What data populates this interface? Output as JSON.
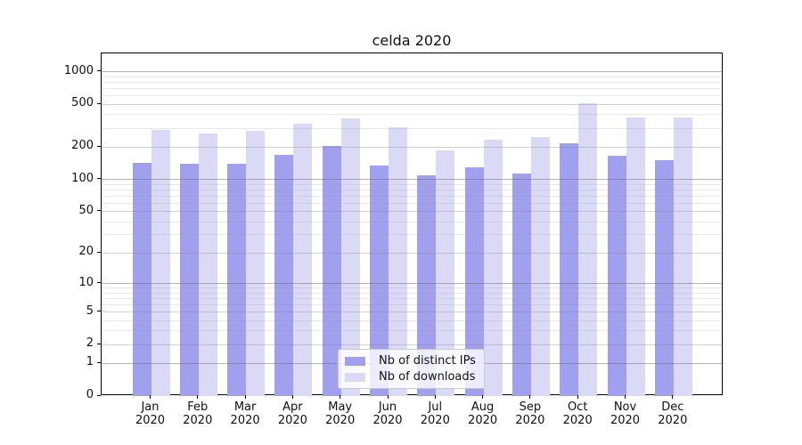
{
  "chart_data": {
    "type": "bar",
    "title": "celda 2020",
    "categories": [
      "Jan 2020",
      "Feb 2020",
      "Mar 2020",
      "Apr 2020",
      "May 2020",
      "Jun 2020",
      "Jul 2020",
      "Aug 2020",
      "Sep 2020",
      "Oct 2020",
      "Nov 2020",
      "Dec 2020"
    ],
    "x_tick_month": [
      "Jan",
      "Feb",
      "Mar",
      "Apr",
      "May",
      "Jun",
      "Jul",
      "Aug",
      "Sep",
      "Oct",
      "Nov",
      "Dec"
    ],
    "x_tick_year": "2020",
    "series": [
      {
        "name": "Nb of distinct IPs",
        "color": "#a0a0ef",
        "values": [
          142,
          139,
          141,
          171,
          204,
          135,
          109,
          131,
          113,
          216,
          167,
          151
        ]
      },
      {
        "name": "Nb of downloads",
        "color": "#dadaf7",
        "values": [
          291,
          268,
          284,
          332,
          369,
          307,
          187,
          236,
          248,
          515,
          377,
          377
        ]
      }
    ],
    "xlabel": "",
    "ylabel": "",
    "yscale": "log1p",
    "ylim": [
      0,
      1500
    ],
    "y_ticks_labeled": [
      0,
      1,
      2,
      5,
      10,
      20,
      50,
      100,
      200,
      500,
      1000
    ],
    "y_gridlines_major": [
      1,
      10,
      100,
      1000
    ],
    "y_gridlines_mid": [
      2,
      5,
      20,
      50,
      200,
      500
    ],
    "y_gridlines_minor": [
      3,
      4,
      6,
      7,
      8,
      9,
      30,
      40,
      60,
      70,
      80,
      90,
      300,
      400,
      600,
      700,
      800,
      900
    ],
    "grid": "horizontal major+minor, drawn over bars",
    "legend_position": "lower center"
  }
}
